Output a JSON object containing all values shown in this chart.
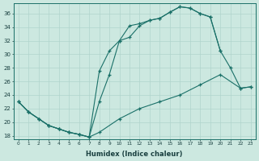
{
  "xlabel": "Humidex (Indice chaleur)",
  "background_color": "#cce8e0",
  "grid_color": "#b0d4cc",
  "line_color": "#1a7068",
  "xlim": [
    -0.5,
    23.5
  ],
  "ylim": [
    17.5,
    37.5
  ],
  "yticks": [
    18,
    20,
    22,
    24,
    26,
    28,
    30,
    32,
    34,
    36
  ],
  "xticks": [
    0,
    1,
    2,
    3,
    4,
    5,
    6,
    7,
    8,
    9,
    10,
    11,
    12,
    13,
    14,
    15,
    16,
    17,
    18,
    19,
    20,
    21,
    22,
    23
  ],
  "line1_x": [
    0,
    1,
    2,
    3,
    4,
    5,
    6,
    7,
    8,
    9,
    10,
    11,
    12,
    13,
    14,
    15,
    16,
    17,
    18,
    19,
    20,
    21,
    22,
    23
  ],
  "line1_y": [
    23,
    21.5,
    20.5,
    19.5,
    19.0,
    18.5,
    18.2,
    17.8,
    23.0,
    27.0,
    32.0,
    34.2,
    34.5,
    35.0,
    35.3,
    36.2,
    37.0,
    36.8,
    36.0,
    35.5,
    30.5,
    28.0,
    25.0,
    25.2
  ],
  "line2_x": [
    0,
    1,
    2,
    3,
    4,
    5,
    6,
    7,
    8,
    9,
    10,
    11,
    12,
    13,
    14,
    15,
    16,
    17,
    18,
    19,
    20
  ],
  "line2_y": [
    23,
    21.5,
    20.5,
    19.5,
    19.0,
    18.5,
    18.2,
    17.8,
    27.5,
    30.5,
    32.0,
    32.5,
    34.2,
    35.0,
    35.3,
    36.2,
    37.0,
    36.8,
    36.0,
    35.5,
    30.5
  ],
  "line3_x": [
    0,
    1,
    2,
    3,
    4,
    5,
    6,
    7,
    8,
    10,
    12,
    14,
    16,
    18,
    20,
    22,
    23
  ],
  "line3_y": [
    23,
    21.5,
    20.5,
    19.5,
    19.0,
    18.5,
    18.2,
    17.8,
    18.5,
    20.5,
    22.0,
    23.0,
    24.0,
    25.5,
    27.0,
    25.0,
    25.2
  ]
}
